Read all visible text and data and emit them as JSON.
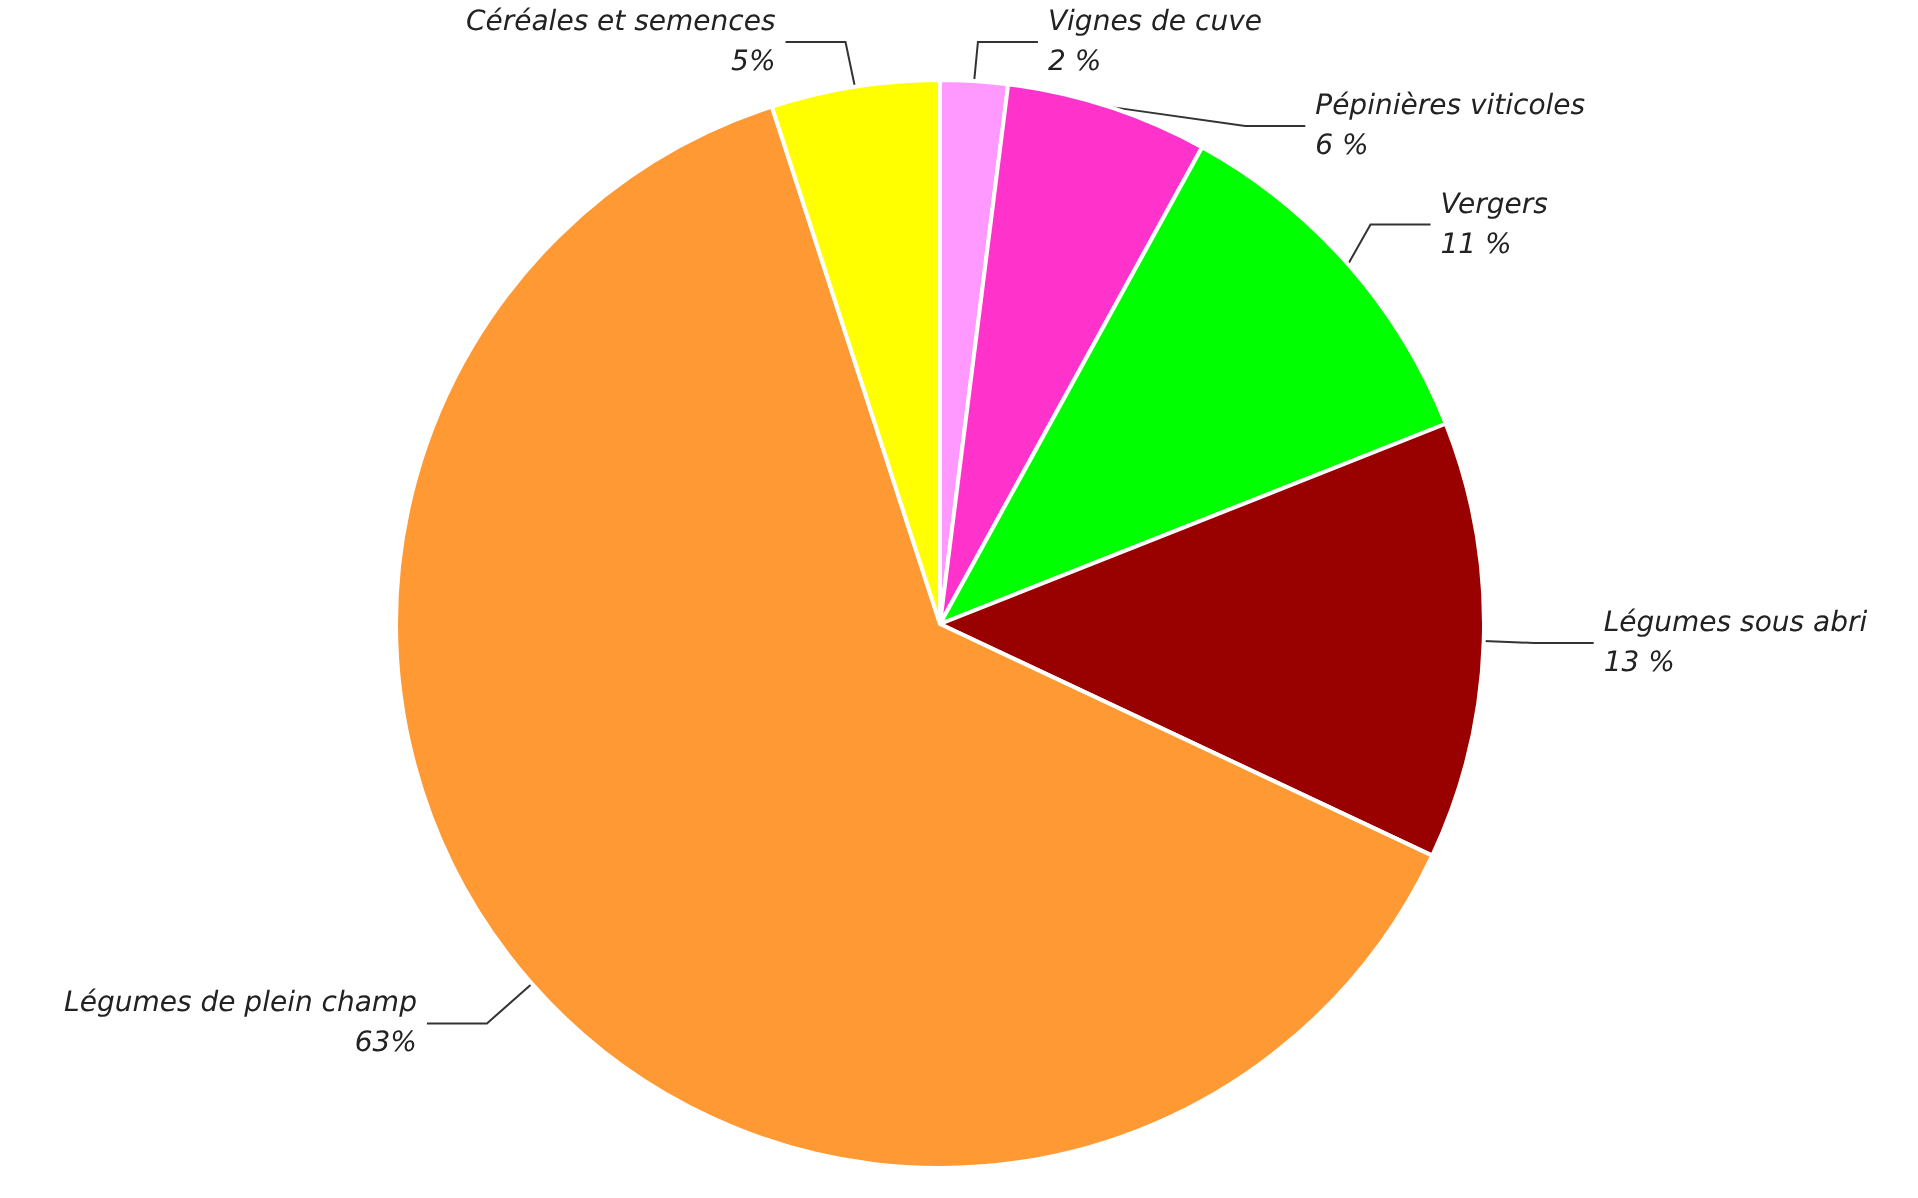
{
  "chart_data": {
    "type": "pie",
    "categories": [
      "Vignes de cuve",
      "Pépinières viticoles",
      "Vergers",
      "Légumes sous abri",
      "Légumes de plein champ",
      "Céréales et semences"
    ],
    "values": [
      2,
      6,
      11,
      13,
      63,
      5
    ],
    "value_labels": [
      "2 %",
      "6 %",
      "11 %",
      "13 %",
      "63%",
      "5%"
    ],
    "colors": [
      "#ff99ff",
      "#ff33cc",
      "#00ff00",
      "#990000",
      "#ff9933",
      "#ffff00"
    ],
    "legend": false
  }
}
